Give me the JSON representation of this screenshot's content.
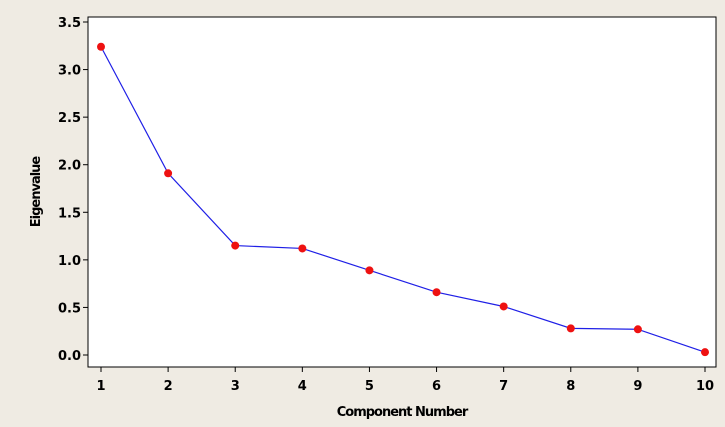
{
  "chart_data": {
    "type": "line",
    "title": "",
    "xlabel": "Component Number",
    "ylabel": "Eigenvalue",
    "x": [
      1,
      2,
      3,
      4,
      5,
      6,
      7,
      8,
      9,
      10
    ],
    "series": [
      {
        "values": [
          3.24,
          1.91,
          1.15,
          1.12,
          0.89,
          0.66,
          0.51,
          0.28,
          0.27,
          0.03
        ]
      }
    ],
    "xlim": [
      1,
      10
    ],
    "ylim": [
      0,
      3.5
    ],
    "xticks": [
      "1",
      "2",
      "3",
      "4",
      "5",
      "6",
      "7",
      "8",
      "9",
      "10"
    ],
    "yticks": [
      "0.0",
      "0.5",
      "1.0",
      "1.5",
      "2.0",
      "2.5",
      "3.0",
      "3.5"
    ],
    "grid": false,
    "colors": {
      "line": "#1f1fe6",
      "marker": "#ee1111",
      "background": "#efebe3",
      "plot_background": "#ffffff"
    }
  }
}
